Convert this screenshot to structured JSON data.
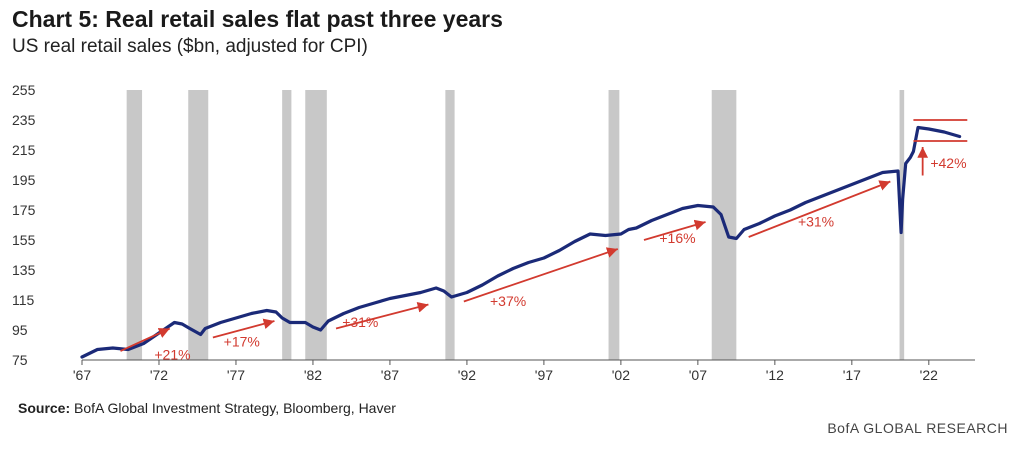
{
  "header": {
    "title": "Chart 5: Real retail sales flat past three years",
    "subtitle": "US real retail sales ($bn, adjusted for CPI)"
  },
  "footer": {
    "source_label": "Source:",
    "source_text": " BofA Global Investment Strategy, Bloomberg, Haver",
    "brand": "BofA GLOBAL RESEARCH"
  },
  "colors": {
    "series": "#1b2a78",
    "annotation": "#d23a2f",
    "recession": "#c8c8c8"
  },
  "chart_data": {
    "type": "line",
    "title": "Chart 5: Real retail sales flat past three years",
    "subtitle": "US real retail sales ($bn, adjusted for CPI)",
    "xlabel": "",
    "ylabel": "",
    "xlim": [
      1967,
      2025
    ],
    "ylim": [
      75,
      255
    ],
    "y_ticks": [
      75,
      95,
      115,
      135,
      155,
      175,
      195,
      215,
      235,
      255
    ],
    "x_ticks": [
      {
        "value": 1967,
        "label": "'67"
      },
      {
        "value": 1972,
        "label": "'72"
      },
      {
        "value": 1977,
        "label": "'77"
      },
      {
        "value": 1982,
        "label": "'82"
      },
      {
        "value": 1987,
        "label": "'87"
      },
      {
        "value": 1992,
        "label": "'92"
      },
      {
        "value": 1997,
        "label": "'97"
      },
      {
        "value": 2002,
        "label": "'02"
      },
      {
        "value": 2007,
        "label": "'07"
      },
      {
        "value": 2012,
        "label": "'12"
      },
      {
        "value": 2017,
        "label": "'17"
      },
      {
        "value": 2022,
        "label": "'22"
      }
    ],
    "grid": false,
    "recessions": [
      [
        1969.9,
        1970.9
      ],
      [
        1973.9,
        1975.2
      ],
      [
        1980.0,
        1980.6
      ],
      [
        1981.5,
        1982.9
      ],
      [
        1990.6,
        1991.2
      ],
      [
        2001.2,
        2001.9
      ],
      [
        2007.9,
        2009.5
      ],
      [
        2020.1,
        2020.4
      ]
    ],
    "series": [
      {
        "color": "#1b2a78",
        "x": [
          1967,
          1968,
          1969,
          1970,
          1971,
          1972,
          1973,
          1973.5,
          1974,
          1974.7,
          1975,
          1976,
          1977,
          1978,
          1979,
          1979.6,
          1980,
          1980.5,
          1981,
          1981.5,
          1982,
          1982.5,
          1983,
          1984,
          1985,
          1986,
          1987,
          1988,
          1989,
          1990,
          1990.5,
          1991,
          1992,
          1993,
          1994,
          1995,
          1996,
          1997,
          1998,
          1999,
          2000,
          2001,
          2002,
          2002.5,
          2003,
          2004,
          2005,
          2006,
          2007,
          2008,
          2008.5,
          2009,
          2009.5,
          2010,
          2011,
          2012,
          2013,
          2014,
          2015,
          2016,
          2017,
          2018,
          2019,
          2020,
          2020.2,
          2020.3,
          2020.5,
          2020.8,
          2021,
          2021.3,
          2022,
          2023,
          2024
        ],
        "y": [
          77,
          82,
          83,
          82,
          86,
          93,
          100,
          99,
          96,
          92,
          96,
          100,
          103,
          106,
          108,
          107,
          103,
          100,
          100,
          100,
          97,
          95,
          101,
          106,
          110,
          113,
          116,
          118,
          120,
          123,
          121,
          117,
          120,
          125,
          131,
          136,
          140,
          143,
          148,
          154,
          159,
          158,
          159,
          162,
          163,
          168,
          172,
          176,
          178,
          177,
          172,
          157,
          156,
          162,
          166,
          171,
          175,
          180,
          184,
          188,
          192,
          196,
          200,
          201,
          160,
          182,
          206,
          210,
          214,
          230,
          229,
          227,
          224
        ]
      }
    ],
    "annotations": [
      {
        "label": "+21%",
        "from": [
          1969.5,
          81
        ],
        "to": [
          1972.7,
          96
        ],
        "label_at": [
          1971.7,
          75.5
        ]
      },
      {
        "label": "+17%",
        "from": [
          1975.5,
          90
        ],
        "to": [
          1979.5,
          101
        ],
        "label_at": [
          1976.2,
          84
        ]
      },
      {
        "label": "+31%",
        "from": [
          1983.5,
          96
        ],
        "to": [
          1989.5,
          112
        ],
        "label_at": [
          1983.9,
          97
        ]
      },
      {
        "label": "+37%",
        "from": [
          1991.8,
          114
        ],
        "to": [
          2001.8,
          149
        ],
        "label_at": [
          1993.5,
          111
        ]
      },
      {
        "label": "+16%",
        "from": [
          2003.5,
          155
        ],
        "to": [
          2007.5,
          167
        ],
        "label_at": [
          2004.5,
          153
        ]
      },
      {
        "label": "+31%",
        "from": [
          2010.3,
          157
        ],
        "to": [
          2019.5,
          194
        ],
        "label_at": [
          2013.5,
          164
        ]
      },
      {
        "label": "+42%",
        "from": [
          2021.6,
          198
        ],
        "to": [
          2021.6,
          217
        ],
        "label_at": [
          2022.1,
          203
        ]
      }
    ],
    "flat_band": {
      "x": [
        2021,
        2024.5
      ],
      "y": [
        221,
        235
      ]
    }
  }
}
